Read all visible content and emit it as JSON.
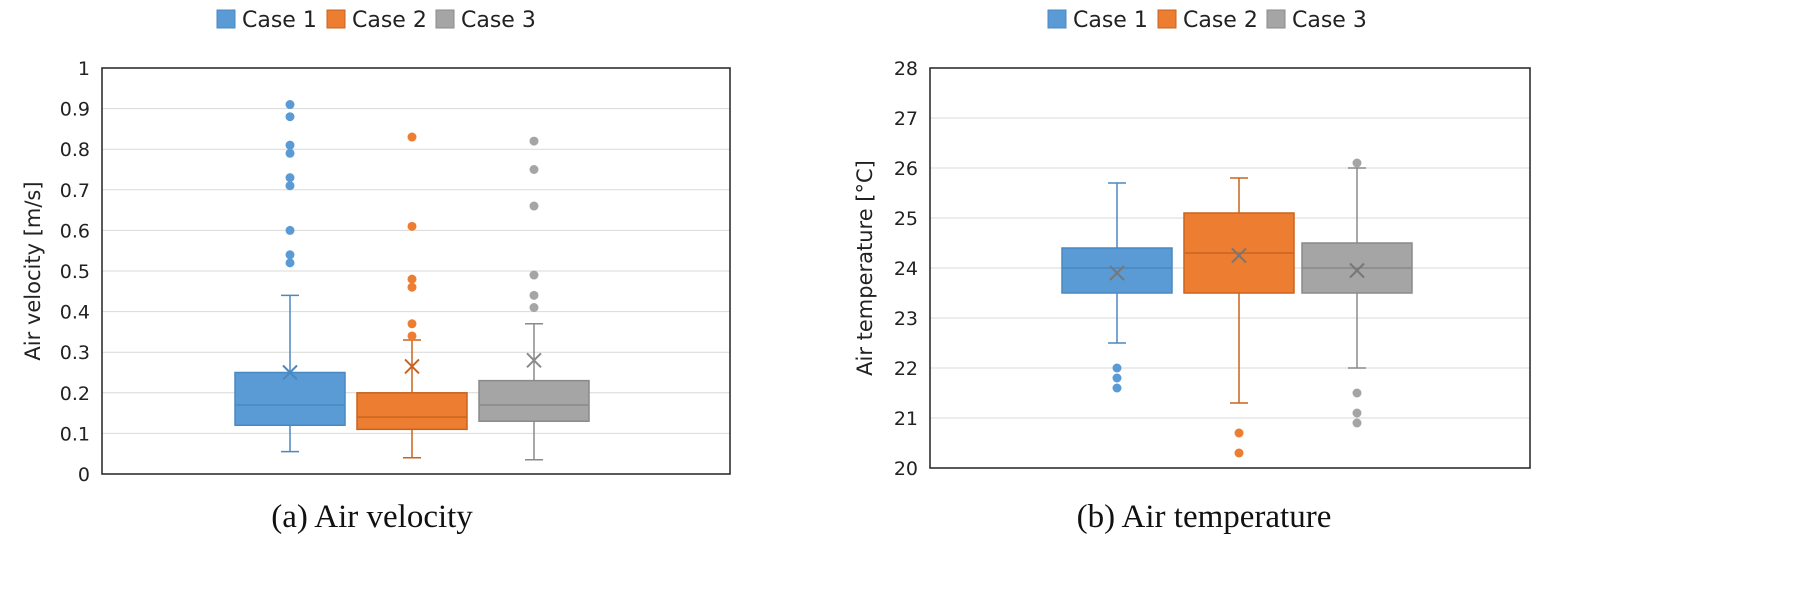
{
  "chart_data": [
    {
      "type": "box",
      "caption": "(a) Air velocity",
      "ylabel": "Air velocity [m/s]",
      "ylim": [
        0,
        1
      ],
      "yticks": [
        0,
        0.1,
        0.2,
        0.3,
        0.4,
        0.5,
        0.6,
        0.7,
        0.8,
        0.9,
        1
      ],
      "ytick_labels": [
        "0",
        "0.1",
        "0.2",
        "0.3",
        "0.4",
        "0.5",
        "0.6",
        "0.7",
        "0.8",
        "0.9",
        "1"
      ],
      "grid": true,
      "legend_position": "top",
      "series": [
        {
          "name": "Case 1",
          "color": "#5B9BD5",
          "edge": "#4A88C2",
          "min": 0.055,
          "q1": 0.12,
          "median": 0.17,
          "q3": 0.25,
          "max": 0.44,
          "mean": 0.25,
          "outliers": [
            0.52,
            0.54,
            0.6,
            0.71,
            0.73,
            0.79,
            0.81,
            0.88,
            0.91
          ]
        },
        {
          "name": "Case 2",
          "color": "#ED7D31",
          "edge": "#C8641F",
          "min": 0.04,
          "q1": 0.11,
          "median": 0.14,
          "q3": 0.2,
          "max": 0.33,
          "mean": 0.265,
          "outliers": [
            0.34,
            0.37,
            0.46,
            0.48,
            0.61,
            0.83
          ]
        },
        {
          "name": "Case 3",
          "color": "#A5A5A5",
          "edge": "#8A8A8A",
          "min": 0.035,
          "q1": 0.13,
          "median": 0.17,
          "q3": 0.23,
          "max": 0.37,
          "mean": 0.28,
          "outliers": [
            0.41,
            0.44,
            0.49,
            0.66,
            0.75,
            0.82
          ]
        }
      ]
    },
    {
      "type": "box",
      "caption": "(b) Air temperature",
      "ylabel": "Air temperature  [°C]",
      "ylim": [
        20,
        28
      ],
      "yticks": [
        20,
        21,
        22,
        23,
        24,
        25,
        26,
        27,
        28
      ],
      "ytick_labels": [
        "20",
        "21",
        "22",
        "23",
        "24",
        "25",
        "26",
        "27",
        "28"
      ],
      "grid": true,
      "legend_position": "top",
      "series": [
        {
          "name": "Case 1",
          "color": "#5B9BD5",
          "edge": "#4A88C2",
          "min": 22.5,
          "q1": 23.5,
          "median": 24.0,
          "q3": 24.4,
          "max": 25.7,
          "mean": 23.9,
          "outliers": [
            21.6,
            21.8,
            22.0
          ]
        },
        {
          "name": "Case 2",
          "color": "#ED7D31",
          "edge": "#C8641F",
          "min": 21.3,
          "q1": 23.5,
          "median": 24.3,
          "q3": 25.1,
          "max": 25.8,
          "mean": 24.25,
          "outliers": [
            20.3,
            20.7
          ]
        },
        {
          "name": "Case 3",
          "color": "#A5A5A5",
          "edge": "#8A8A8A",
          "min": 22.0,
          "q1": 23.5,
          "median": 24.0,
          "q3": 24.5,
          "max": 26.0,
          "mean": 23.95,
          "outliers": [
            20.9,
            21.1,
            21.5,
            26.1
          ]
        }
      ]
    }
  ]
}
